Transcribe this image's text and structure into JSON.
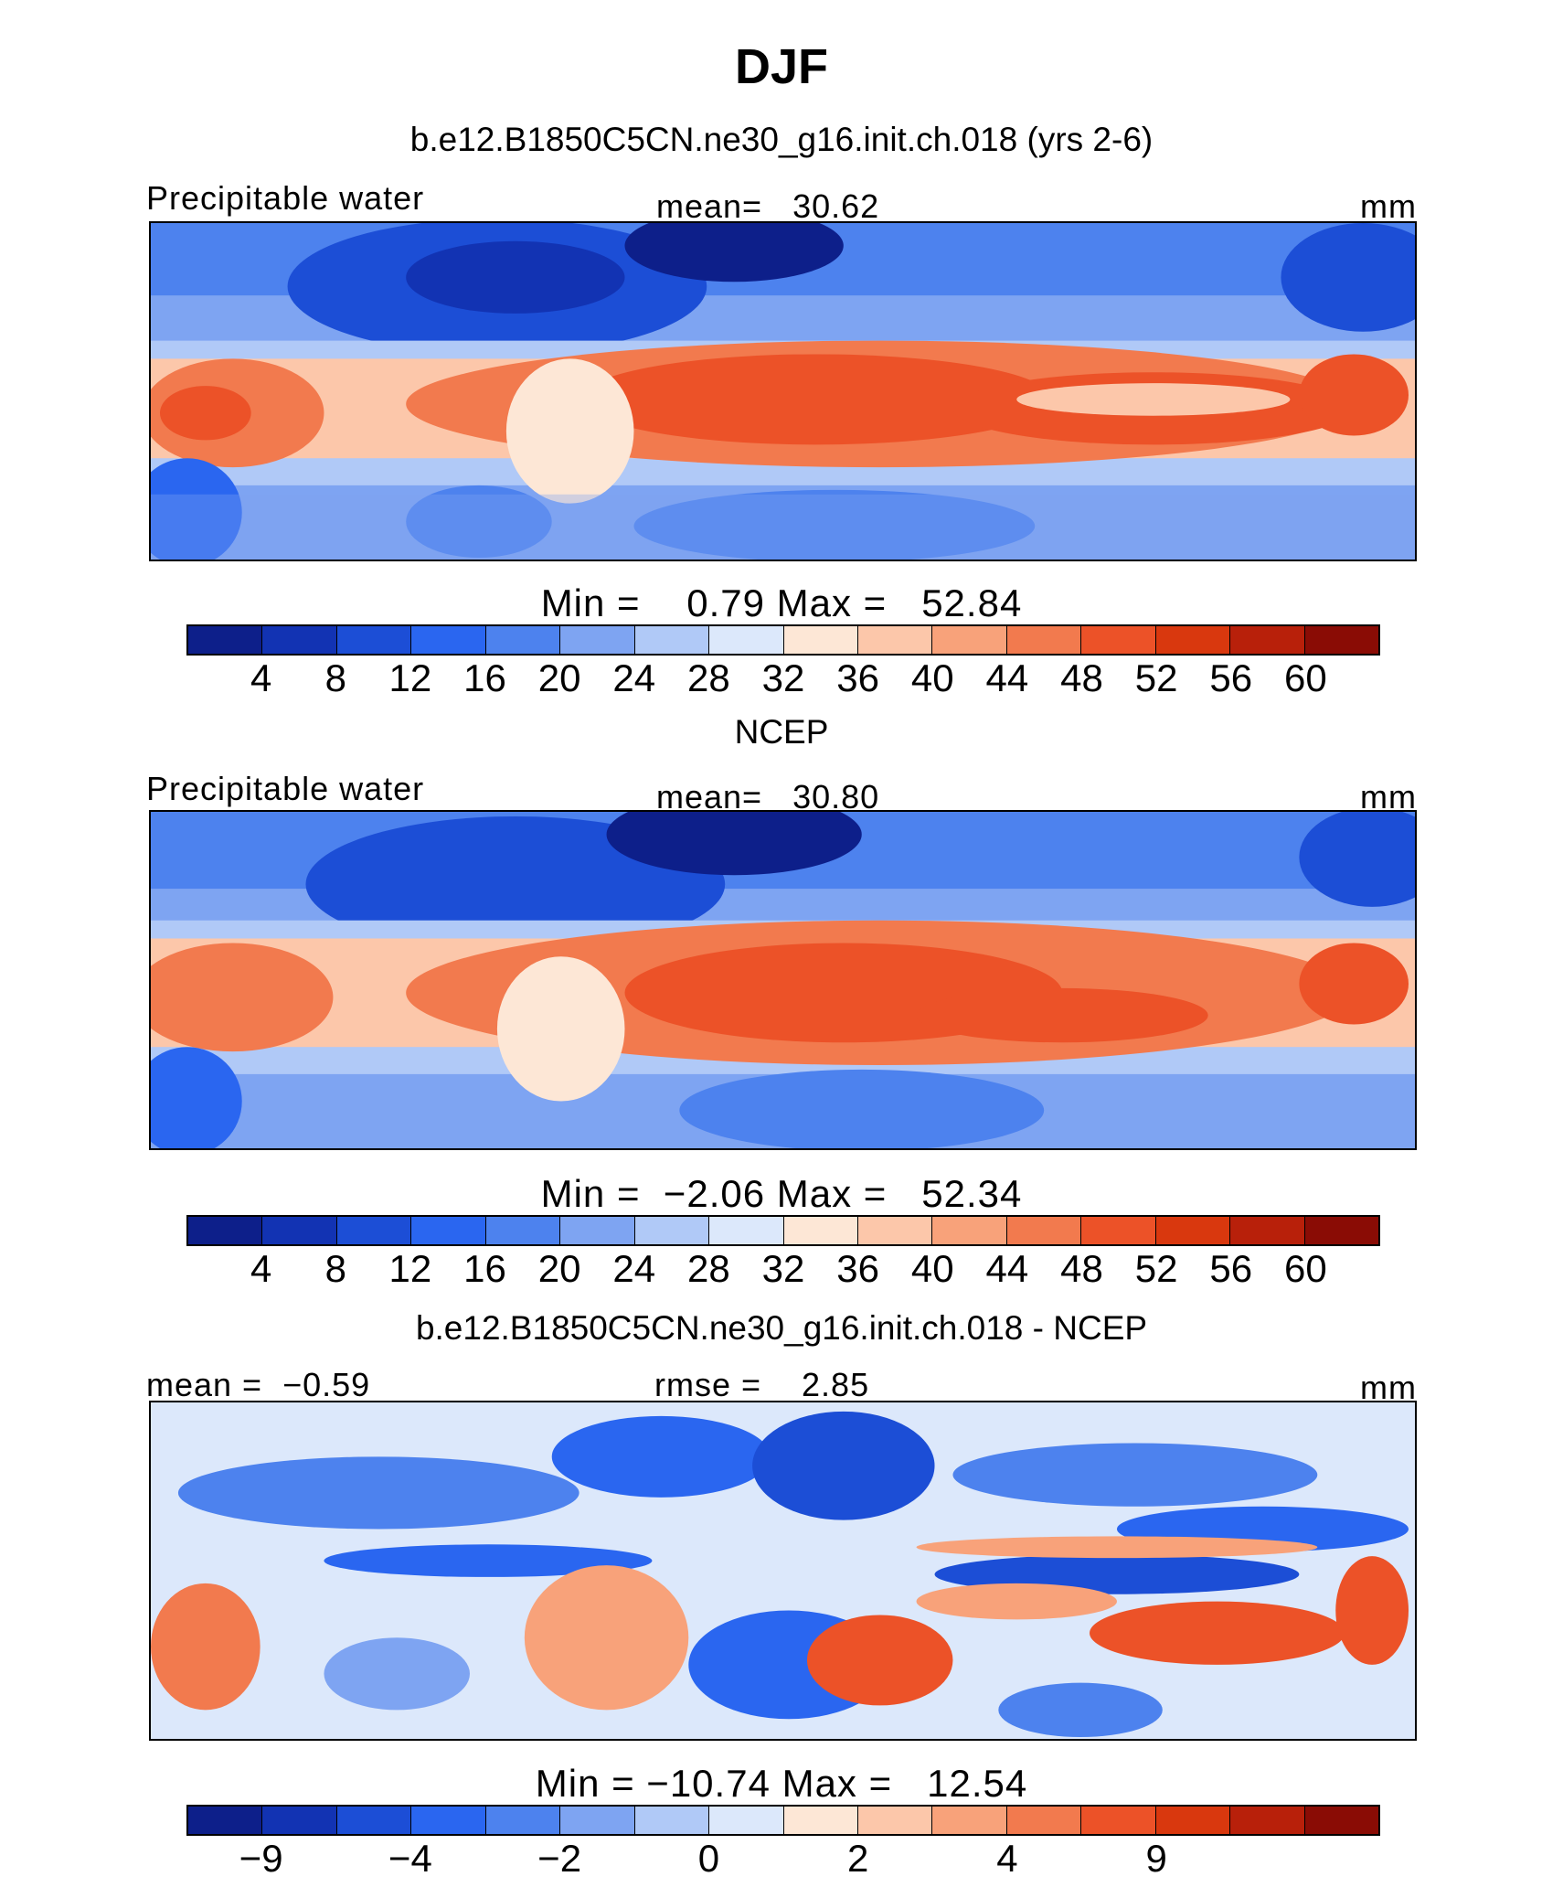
{
  "title": "DJF",
  "colors": [
    "#0d1f8a",
    "#1233b3",
    "#1c4ed6",
    "#2a66f0",
    "#4d82ee",
    "#7ea4f2",
    "#b0c9f7",
    "#dce8fb",
    "#fde7d6",
    "#fcc7aa",
    "#f8a27a",
    "#f27a4e",
    "#ec5228",
    "#d9380e",
    "#b8200a",
    "#8a0c05"
  ],
  "panels": [
    {
      "title": "b.e12.B1850C5CN.ne30_g16.init.ch.018 (yrs 2-6)",
      "left_label": "Precipitable water",
      "center_label": "mean=   30.62",
      "right_label": "mm",
      "minmax": "Min =    0.79 Max =   52.84",
      "ticks": [
        "4",
        "8",
        "12",
        "16",
        "20",
        "24",
        "28",
        "32",
        "36",
        "40",
        "44",
        "48",
        "52",
        "56",
        "60"
      ]
    },
    {
      "title": "NCEP",
      "left_label": "Precipitable water",
      "center_label": "mean=   30.80",
      "right_label": "mm",
      "minmax": "Min =  −2.06 Max =   52.34",
      "ticks": [
        "4",
        "8",
        "12",
        "16",
        "20",
        "24",
        "28",
        "32",
        "36",
        "40",
        "44",
        "48",
        "52",
        "56",
        "60"
      ]
    },
    {
      "title": "b.e12.B1850C5CN.ne30_g16.init.ch.018 - NCEP",
      "left_label": "mean =  −0.59",
      "center_label": "rmse =    2.85",
      "right_label": "mm",
      "minmax": "Min = −10.74 Max =   12.54",
      "ticks": [
        "−9",
        "",
        "−4",
        "",
        "−2",
        "",
        "0",
        "",
        "2",
        "",
        "4",
        "",
        "9",
        "",
        ""
      ]
    }
  ]
}
